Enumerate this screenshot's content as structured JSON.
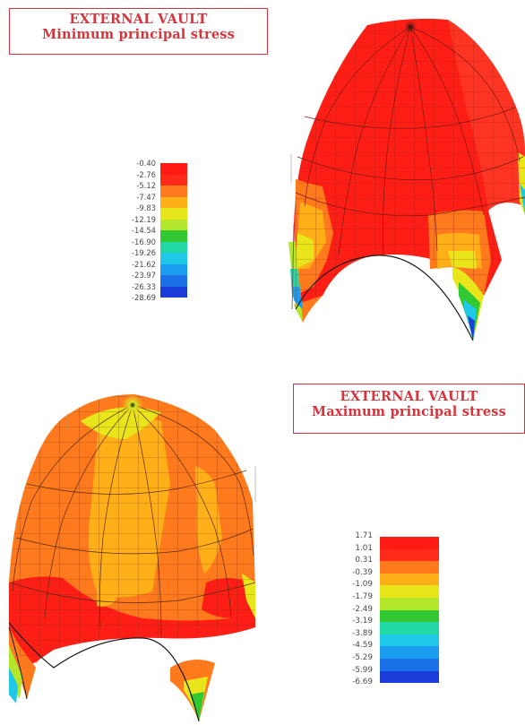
{
  "top_panel": {
    "title_line1": "EXTERNAL VAULT",
    "title_line2": "Minimum principal stress",
    "legend": {
      "labels": [
        "-0.40",
        "-2.76",
        "-5.12",
        "-7.47",
        "-9.83",
        "-12.19",
        "-14.54",
        "-16.90",
        "-19.26",
        "-21.62",
        "-23.97",
        "-26.33",
        "-28.69"
      ],
      "colors": [
        "#ff1a14",
        "#ff2a1a",
        "#ff7a1c",
        "#ffb019",
        "#e8e61a",
        "#b4e62a",
        "#32c832",
        "#22d8a4",
        "#1ec8e6",
        "#1a9cf0",
        "#1a70e6",
        "#1a3cd8"
      ]
    }
  },
  "bottom_panel": {
    "title_line1": "EXTERNAL VAULT",
    "title_line2": "Maximum principal stress",
    "legend": {
      "labels": [
        "1.71",
        "1.01",
        "0.31",
        "-0.39",
        "-1.09",
        "-1.79",
        "-2.49",
        "-3.19",
        "-3.89",
        "-4.59",
        "-5.29",
        "-5.99",
        "-6.69"
      ],
      "colors": [
        "#ff1a14",
        "#ff2a1a",
        "#ff7a1c",
        "#ffb019",
        "#e8e61a",
        "#b4e62a",
        "#32c832",
        "#22d8a4",
        "#1ec8e6",
        "#1a9cf0",
        "#1a70e6",
        "#1a3cd8"
      ]
    }
  }
}
